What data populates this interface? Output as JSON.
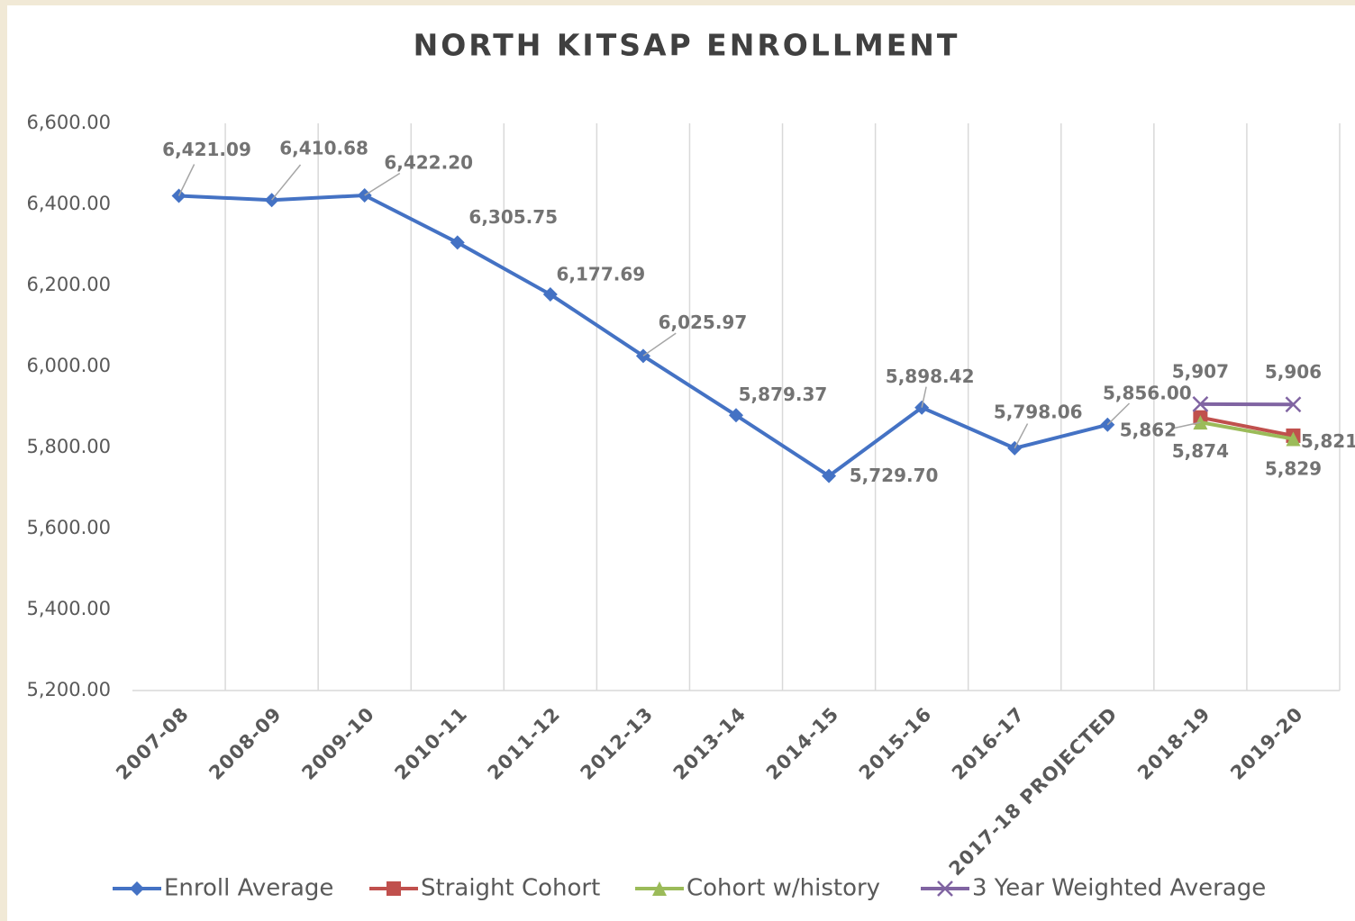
{
  "chart_data": {
    "type": "line",
    "title": "NORTH KITSAP ENROLLMENT",
    "categories": [
      "2007-08",
      "2008-09",
      "2009-10",
      "2010-11",
      "2011-12",
      "2012-13",
      "2013-14",
      "2014-15",
      "2015-16",
      "2016-17",
      "2017-18 PROJECTED",
      "2018-19",
      "2019-20"
    ],
    "series": [
      {
        "name": "Enroll Average",
        "color": "#4472c4",
        "marker": "diamond",
        "values": [
          6421.09,
          6410.68,
          6422.2,
          6305.75,
          6177.69,
          6025.97,
          5879.37,
          5729.7,
          5898.42,
          5798.06,
          5856.0,
          null,
          null
        ],
        "value_labels": [
          "6,421.09",
          "6,410.68",
          "6,422.20",
          "6,305.75",
          "6,177.69",
          "6,025.97",
          "5,879.37",
          "5,729.70",
          "5,898.42",
          "5,798.06",
          "5,856.00",
          null,
          null
        ]
      },
      {
        "name": "Straight Cohort",
        "color": "#c0504d",
        "marker": "square",
        "values": [
          null,
          null,
          null,
          null,
          null,
          null,
          null,
          null,
          null,
          null,
          null,
          5874,
          5829
        ],
        "value_labels": [
          null,
          null,
          null,
          null,
          null,
          null,
          null,
          null,
          null,
          null,
          null,
          "5,874",
          "5,829"
        ]
      },
      {
        "name": "Cohort w/history",
        "color": "#9bbb59",
        "marker": "triangle",
        "values": [
          null,
          null,
          null,
          null,
          null,
          null,
          null,
          null,
          null,
          null,
          null,
          5862,
          5821
        ],
        "value_labels": [
          null,
          null,
          null,
          null,
          null,
          null,
          null,
          null,
          null,
          null,
          null,
          "5,862",
          "5,821"
        ]
      },
      {
        "name": "3 Year Weighted Average",
        "color": "#8064a2",
        "marker": "x",
        "values": [
          null,
          null,
          null,
          null,
          null,
          null,
          null,
          null,
          null,
          null,
          null,
          5907,
          5906
        ],
        "value_labels": [
          null,
          null,
          null,
          null,
          null,
          null,
          null,
          null,
          null,
          null,
          null,
          "5,907",
          "5,906"
        ]
      }
    ],
    "ylim": [
      5200,
      6600
    ],
    "yticks": [
      {
        "value": 5200,
        "label": "5,200.00"
      },
      {
        "value": 5400,
        "label": "5,400.00"
      },
      {
        "value": 5600,
        "label": "5,600.00"
      },
      {
        "value": 5800,
        "label": "5,800.00"
      },
      {
        "value": 6000,
        "label": "6,000.00"
      },
      {
        "value": 6200,
        "label": "6,200.00"
      },
      {
        "value": 6400,
        "label": "6,400.00"
      },
      {
        "value": 6600,
        "label": "6,600.00"
      }
    ],
    "legend": "bottom"
  }
}
